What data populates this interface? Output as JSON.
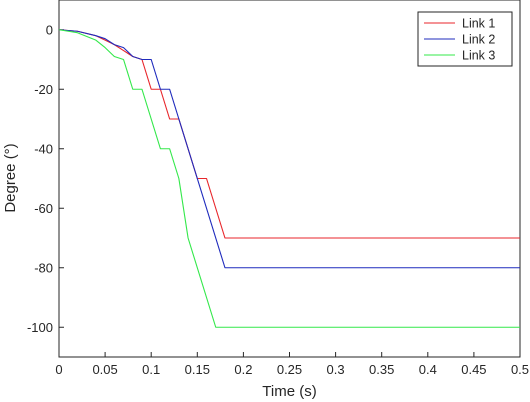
{
  "chart_data": {
    "type": "line",
    "title": "",
    "xlabel": "Time (s)",
    "ylabel": "Degree (°)",
    "xlim": [
      0,
      0.5
    ],
    "ylim": [
      -110,
      10
    ],
    "xticks": [
      0,
      0.05,
      0.1,
      0.15,
      0.2,
      0.25,
      0.3,
      0.35,
      0.4,
      0.45,
      0.5
    ],
    "xtick_labels": [
      "0",
      "0.05",
      "0.1",
      "0.15",
      "0.2",
      "0.25",
      "0.3",
      "0.35",
      "0.4",
      "0.45",
      "0.5"
    ],
    "yticks": [
      0,
      -20,
      -40,
      -60,
      -80,
      -100
    ],
    "ytick_labels": [
      "0",
      "-20",
      "-40",
      "-60",
      "-80",
      "-100"
    ],
    "grid": false,
    "legend_position": "top-right",
    "series": [
      {
        "name": "Link 1",
        "color": "#e8262b",
        "x": [
          0,
          0.02,
          0.04,
          0.05,
          0.06,
          0.07,
          0.08,
          0.09,
          0.1,
          0.11,
          0.12,
          0.13,
          0.15,
          0.16,
          0.18,
          0.5
        ],
        "y": [
          0,
          -0.5,
          -2,
          -3.5,
          -5,
          -7,
          -9,
          -10,
          -20,
          -20,
          -30,
          -30,
          -50,
          -50,
          -70,
          -70
        ]
      },
      {
        "name": "Link 2",
        "color": "#1f2bbd",
        "x": [
          0,
          0.02,
          0.04,
          0.05,
          0.06,
          0.07,
          0.08,
          0.09,
          0.1,
          0.11,
          0.12,
          0.18,
          0.5
        ],
        "y": [
          0,
          -0.5,
          -2,
          -3,
          -5,
          -6,
          -9,
          -10,
          -10,
          -20,
          -20,
          -80,
          -80
        ],
        "note_hidden": false
      },
      {
        "name": "Link 3",
        "color": "#33e84a",
        "x": [
          0,
          0.02,
          0.04,
          0.05,
          0.06,
          0.07,
          0.08,
          0.09,
          0.1,
          0.11,
          0.12,
          0.13,
          0.14,
          0.17,
          0.5
        ],
        "y": [
          0,
          -1,
          -3.5,
          -6,
          -9,
          -10,
          -20,
          -20,
          -30,
          -40,
          -40,
          -50,
          -70,
          -100,
          -100
        ]
      }
    ]
  }
}
